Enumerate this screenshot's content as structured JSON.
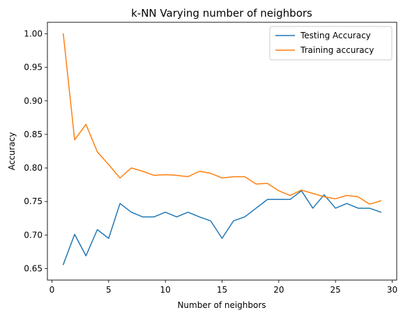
{
  "chart_data": {
    "type": "line",
    "title": "k-NN Varying number of neighbors",
    "xlabel": "Number of neighbors",
    "ylabel": "Accuracy",
    "xlim": [
      -0.4,
      30.4
    ],
    "ylim": [
      0.6328,
      1.0172
    ],
    "xticks": [
      0,
      5,
      10,
      15,
      20,
      25,
      30
    ],
    "yticks": [
      0.65,
      0.7,
      0.75,
      0.8,
      0.85,
      0.9,
      0.95,
      1.0
    ],
    "ytick_labels": [
      "0.65",
      "0.70",
      "0.75",
      "0.80",
      "0.85",
      "0.90",
      "0.95",
      "1.00"
    ],
    "grid": false,
    "legend_position": "upper right",
    "x": [
      1,
      2,
      3,
      4,
      5,
      6,
      7,
      8,
      9,
      10,
      11,
      12,
      13,
      14,
      15,
      16,
      17,
      18,
      19,
      20,
      21,
      22,
      23,
      24,
      25,
      26,
      27,
      28,
      29
    ],
    "series": [
      {
        "name": "Testing Accuracy",
        "color": "#1f77b4",
        "values": [
          0.656,
          0.701,
          0.669,
          0.708,
          0.695,
          0.747,
          0.734,
          0.727,
          0.727,
          0.734,
          0.727,
          0.734,
          0.727,
          0.721,
          0.695,
          0.721,
          0.727,
          0.74,
          0.753,
          0.753,
          0.753,
          0.766,
          0.74,
          0.76,
          0.74,
          0.747,
          0.74,
          0.74,
          0.734
        ]
      },
      {
        "name": "Training accuracy",
        "color": "#ff7f0e",
        "values": [
          1.0,
          0.842,
          0.865,
          0.824,
          0.805,
          0.785,
          0.8,
          0.795,
          0.789,
          0.79,
          0.789,
          0.787,
          0.795,
          0.792,
          0.785,
          0.787,
          0.787,
          0.776,
          0.777,
          0.766,
          0.759,
          0.767,
          0.762,
          0.757,
          0.754,
          0.759,
          0.757,
          0.746,
          0.751
        ]
      }
    ]
  }
}
